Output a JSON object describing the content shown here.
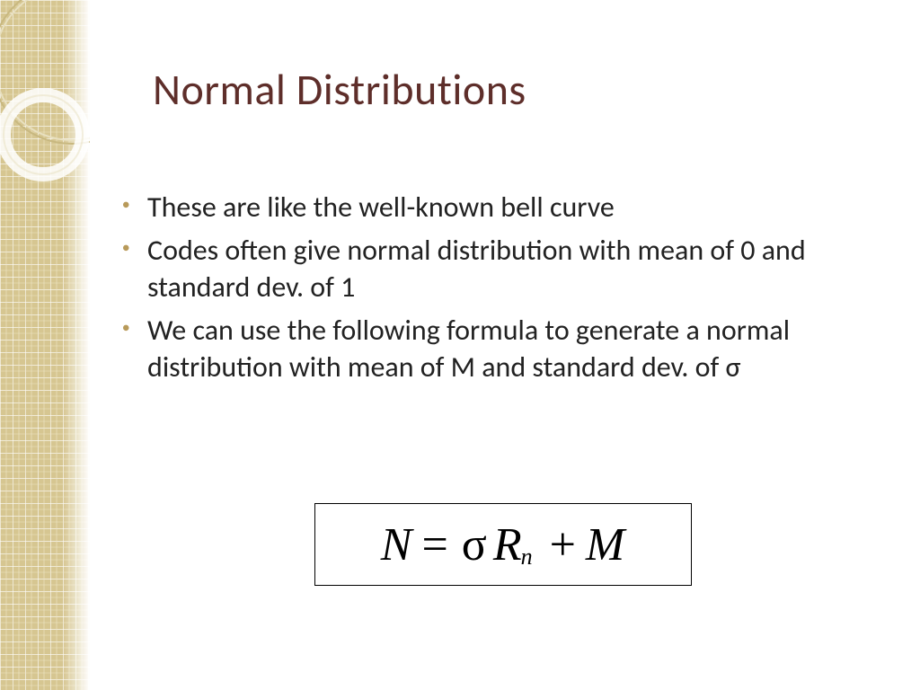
{
  "slide": {
    "title": "Normal Distributions",
    "title_color": "#5e2e2a",
    "bullet_marker_color": "#b89a5a",
    "bullets": [
      "These are like the well-known bell curve",
      "Codes often give normal distribution with mean of 0 and standard dev. of 1",
      "We can use the following formula to generate a normal distribution with mean of M and standard dev. of σ"
    ],
    "formula": {
      "lhs": "N",
      "eq": "=",
      "sigma": "σ",
      "R": "R",
      "sub": "n",
      "plus": "+",
      "M": "M",
      "border_color": "#000000",
      "font_family": "Times New Roman"
    },
    "sidebar": {
      "pattern_color": "#d6c691",
      "pattern_line": "#ffffff",
      "pattern_line2": "#f0e8c8",
      "circle_stroke": "#e8e0c0",
      "circle_stroke2": "#c8b880",
      "circle_inner": "#ffffff"
    },
    "background_color": "#ffffff"
  }
}
